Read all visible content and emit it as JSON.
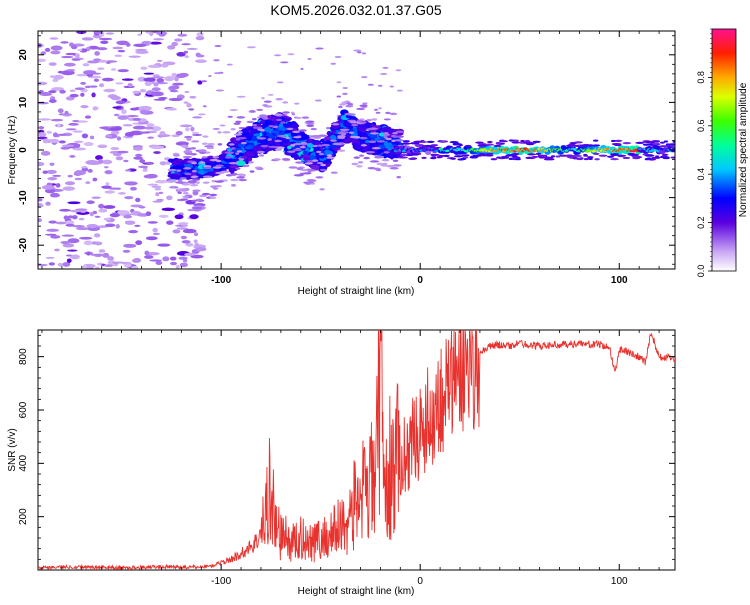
{
  "title": "KOM5.2026.032.01.37.G05",
  "chart_data": [
    {
      "type": "heatmap",
      "name": "spectrogram",
      "xlabel": "Height of straight line (km)",
      "ylabel": "Frequency (Hz)",
      "xlim": [
        -192,
        128
      ],
      "ylim": [
        -25,
        25
      ],
      "xticks": [
        -100,
        0,
        100
      ],
      "yticks": [
        -20,
        -10,
        0,
        10,
        20
      ],
      "colorbar": {
        "label": "Normalized spectral amplitude",
        "range": [
          0,
          1
        ],
        "ticks": [
          0.0,
          0.2,
          0.4,
          0.6,
          0.8
        ]
      },
      "features": [
        {
          "description": "sparse scattered low-amplitude noise",
          "x_range": [
            -192,
            -110
          ],
          "freq_range": [
            -25,
            25
          ],
          "amplitude": 0.1
        },
        {
          "description": "main signal ridge",
          "points": [
            [
              -125,
              -4
            ],
            [
              -110,
              -4
            ],
            [
              -100,
              -3
            ],
            [
              -90,
              0
            ],
            [
              -80,
              3
            ],
            [
              -70,
              4
            ],
            [
              -60,
              1
            ],
            [
              -50,
              -2
            ],
            [
              -45,
              1
            ],
            [
              -38,
              5
            ],
            [
              -30,
              3
            ],
            [
              -20,
              2
            ],
            [
              -10,
              1
            ],
            [
              0,
              0
            ],
            [
              30,
              0
            ],
            [
              60,
              0
            ],
            [
              90,
              0
            ],
            [
              110,
              0
            ],
            [
              128,
              0
            ]
          ]
        },
        {
          "description": "strongest amplitude near zero frequency",
          "x_range": [
            20,
            110
          ],
          "freq": 0,
          "amplitude": 0.95
        }
      ]
    },
    {
      "type": "line",
      "name": "snr",
      "xlabel": "Height of straight line (km)",
      "ylabel": "SNR (v/v)",
      "xlim": [
        -192,
        128
      ],
      "ylim": [
        0,
        900
      ],
      "xticks": [
        -100,
        0,
        100
      ],
      "yticks": [
        200,
        400,
        600,
        800
      ],
      "color": "#e8322e",
      "series": [
        {
          "name": "SNR",
          "x": [
            -192,
            -170,
            -150,
            -130,
            -115,
            -105,
            -95,
            -88,
            -82,
            -78,
            -76,
            -72,
            -65,
            -58,
            -50,
            -44,
            -38,
            -34,
            -30,
            -26,
            -24,
            -22,
            -20,
            -18,
            -15,
            -12,
            -8,
            -4,
            0,
            5,
            10,
            15,
            20,
            25,
            30,
            35,
            40,
            45,
            50,
            60,
            70,
            80,
            90,
            95,
            98,
            100,
            105,
            110,
            113,
            116,
            120,
            124,
            128
          ],
          "values": [
            10,
            12,
            8,
            12,
            10,
            15,
            40,
            70,
            110,
            180,
            330,
            150,
            100,
            120,
            110,
            140,
            180,
            220,
            300,
            250,
            400,
            350,
            900,
            300,
            380,
            400,
            430,
            480,
            520,
            580,
            640,
            700,
            750,
            790,
            820,
            840,
            845,
            840,
            850,
            840,
            845,
            848,
            845,
            835,
            740,
            830,
            815,
            800,
            780,
            890,
            800,
            795,
            790
          ]
        }
      ]
    }
  ]
}
